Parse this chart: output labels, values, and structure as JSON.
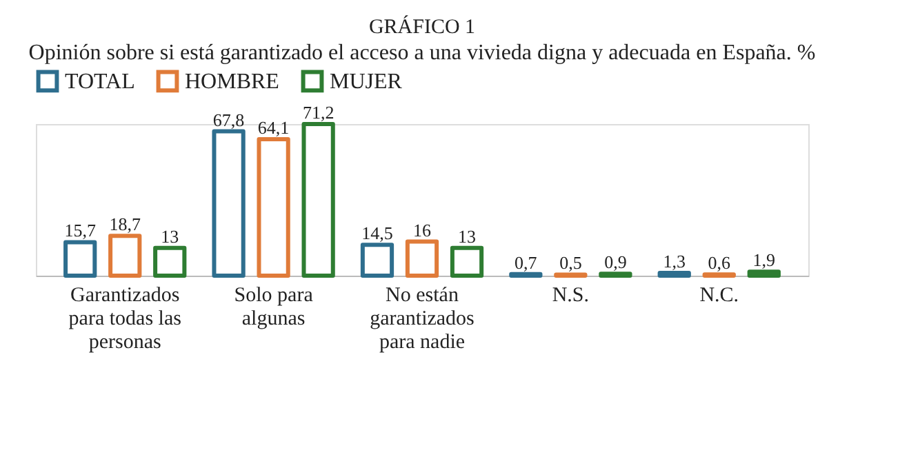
{
  "chart_data": {
    "type": "bar",
    "title": "GRÁFICO 1",
    "subtitle": "Opinión sobre si está garantizado el acceso a una vivieda digna y adecuada en España. %",
    "categories": [
      "Garantizados para todas las personas",
      "Solo para algunas",
      "No están garantizados para nadie",
      "N.S.",
      "N.C."
    ],
    "series": [
      {
        "name": "TOTAL",
        "color": "#2e6e8e",
        "values": [
          15.7,
          67.8,
          14.5,
          0.7,
          1.3
        ],
        "value_labels": [
          "15,7",
          "67,8",
          "14,5",
          "0,7",
          "1,3"
        ]
      },
      {
        "name": "HOMBRE",
        "color": "#e07b39",
        "values": [
          18.7,
          64.1,
          16,
          0.5,
          0.6
        ],
        "value_labels": [
          "18,7",
          "64,1",
          "16",
          "0,5",
          "0,6"
        ]
      },
      {
        "name": "MUJER",
        "color": "#2e7d32",
        "values": [
          13,
          71.2,
          13,
          0.9,
          1.9
        ],
        "value_labels": [
          "13",
          "71,2",
          "13",
          "0,9",
          "1,9"
        ]
      }
    ],
    "legend": "top",
    "grid": false
  }
}
